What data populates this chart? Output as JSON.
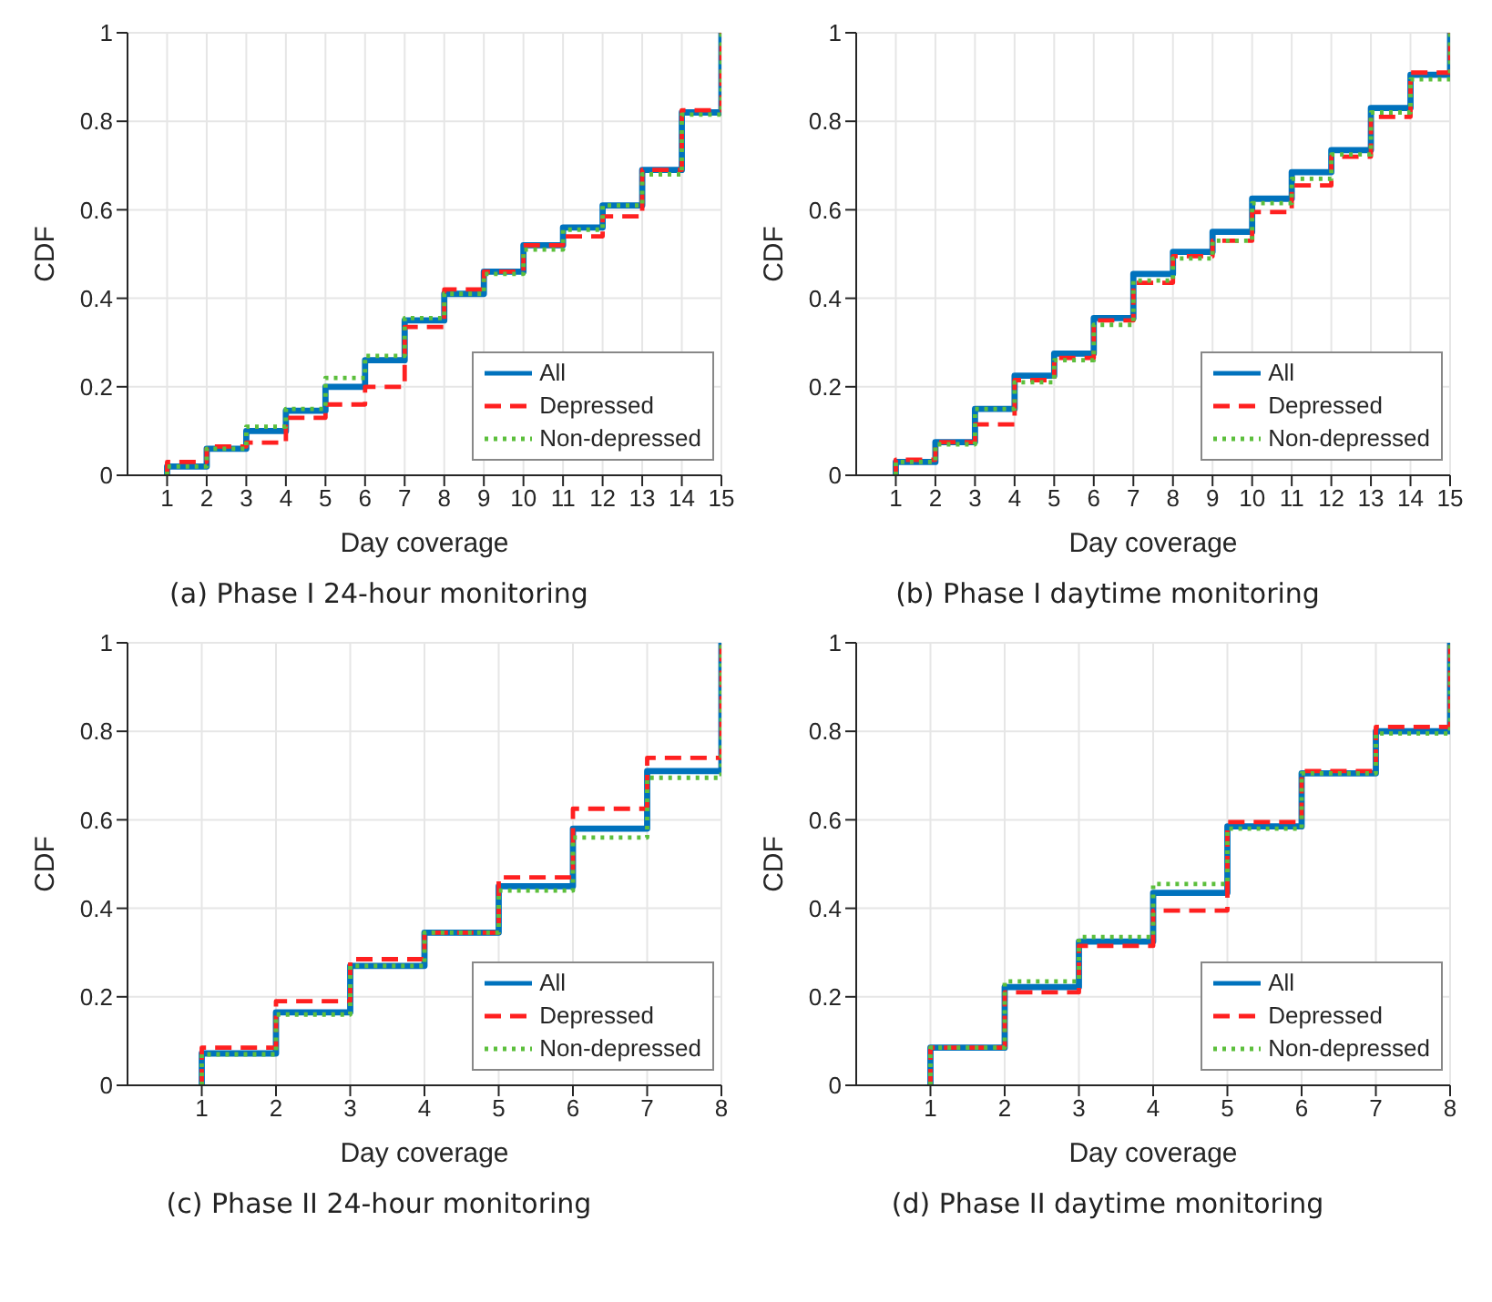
{
  "chart_data": [
    {
      "type": "step",
      "title": "(a) Phase I 24-hour monitoring",
      "xlabel": "Day coverage",
      "ylabel": "CDF",
      "x": [
        1,
        1,
        2,
        3,
        4,
        5,
        6,
        7,
        8,
        9,
        10,
        11,
        12,
        13,
        14,
        15
      ],
      "xlim": [
        0,
        15
      ],
      "xticks": [
        1,
        2,
        3,
        4,
        5,
        6,
        7,
        8,
        9,
        10,
        11,
        12,
        13,
        14,
        15
      ],
      "ylim": [
        0,
        1
      ],
      "yticks": [
        0,
        0.2,
        0.4,
        0.6,
        0.8,
        1
      ],
      "grid": true,
      "legend": "bottom right",
      "series": [
        {
          "name": "All",
          "color": "#0072bd",
          "line_style": "solid",
          "values": [
            0,
            0.02,
            0.06,
            0.1,
            0.146,
            0.2,
            0.26,
            0.35,
            0.41,
            0.46,
            0.52,
            0.56,
            0.61,
            0.69,
            0.82,
            1
          ]
        },
        {
          "name": "Depressed",
          "color": "#ff2020",
          "line_style": "dashed",
          "values": [
            0,
            0.03,
            0.065,
            0.074,
            0.13,
            0.16,
            0.2,
            0.335,
            0.42,
            0.46,
            0.52,
            0.54,
            0.585,
            0.69,
            0.825,
            1
          ]
        },
        {
          "name": "Non-depressed",
          "color": "#5cbf3c",
          "line_style": "dotted",
          "values": [
            0,
            0.02,
            0.06,
            0.11,
            0.15,
            0.22,
            0.27,
            0.355,
            0.41,
            0.455,
            0.51,
            0.555,
            0.61,
            0.68,
            0.815,
            1
          ]
        }
      ]
    },
    {
      "type": "step",
      "title": "(b) Phase I daytime monitoring",
      "xlabel": "Day coverage",
      "ylabel": "CDF",
      "x": [
        1,
        1,
        2,
        3,
        4,
        5,
        6,
        7,
        8,
        9,
        10,
        11,
        12,
        13,
        14,
        15
      ],
      "xlim": [
        0,
        15
      ],
      "xticks": [
        1,
        2,
        3,
        4,
        5,
        6,
        7,
        8,
        9,
        10,
        11,
        12,
        13,
        14,
        15
      ],
      "ylim": [
        0,
        1
      ],
      "yticks": [
        0,
        0.2,
        0.4,
        0.6,
        0.8,
        1
      ],
      "grid": true,
      "legend": "bottom right",
      "series": [
        {
          "name": "All",
          "color": "#0072bd",
          "line_style": "solid",
          "values": [
            0,
            0.03,
            0.075,
            0.15,
            0.225,
            0.275,
            0.355,
            0.455,
            0.505,
            0.55,
            0.625,
            0.685,
            0.735,
            0.83,
            0.905,
            1
          ]
        },
        {
          "name": "Depressed",
          "color": "#ff2020",
          "line_style": "dashed",
          "values": [
            0,
            0.035,
            0.075,
            0.115,
            0.215,
            0.265,
            0.35,
            0.435,
            0.495,
            0.53,
            0.595,
            0.655,
            0.72,
            0.81,
            0.91,
            1
          ]
        },
        {
          "name": "Non-depressed",
          "color": "#5cbf3c",
          "line_style": "dotted",
          "values": [
            0,
            0.03,
            0.07,
            0.15,
            0.21,
            0.26,
            0.34,
            0.44,
            0.49,
            0.53,
            0.615,
            0.67,
            0.725,
            0.82,
            0.895,
            1
          ]
        }
      ]
    },
    {
      "type": "step",
      "title": "(c) Phase II 24-hour monitoring",
      "xlabel": "Day coverage",
      "ylabel": "CDF",
      "x": [
        1,
        1,
        2,
        3,
        4,
        5,
        6,
        7,
        8
      ],
      "xlim": [
        0,
        8
      ],
      "xticks": [
        1,
        2,
        3,
        4,
        5,
        6,
        7,
        8
      ],
      "ylim": [
        0,
        1
      ],
      "yticks": [
        0,
        0.2,
        0.4,
        0.6,
        0.8,
        1
      ],
      "grid": true,
      "legend": "bottom right",
      "series": [
        {
          "name": "All",
          "color": "#0072bd",
          "line_style": "solid",
          "values": [
            0,
            0.072,
            0.165,
            0.27,
            0.345,
            0.45,
            0.58,
            0.71,
            1
          ]
        },
        {
          "name": "Depressed",
          "color": "#ff2020",
          "line_style": "dashed",
          "values": [
            0,
            0.085,
            0.19,
            0.285,
            0.345,
            0.47,
            0.625,
            0.74,
            1
          ]
        },
        {
          "name": "Non-depressed",
          "color": "#5cbf3c",
          "line_style": "dotted",
          "values": [
            0,
            0.07,
            0.16,
            0.27,
            0.345,
            0.44,
            0.56,
            0.695,
            1
          ]
        }
      ]
    },
    {
      "type": "step",
      "title": "(d) Phase II daytime monitoring",
      "xlabel": "Day coverage",
      "ylabel": "CDF",
      "x": [
        1,
        1,
        2,
        3,
        4,
        5,
        6,
        7,
        8
      ],
      "xlim": [
        0,
        8
      ],
      "xticks": [
        1,
        2,
        3,
        4,
        5,
        6,
        7,
        8
      ],
      "ylim": [
        0,
        1
      ],
      "yticks": [
        0,
        0.2,
        0.4,
        0.6,
        0.8,
        1
      ],
      "grid": true,
      "legend": "bottom right",
      "series": [
        {
          "name": "All",
          "color": "#0072bd",
          "line_style": "solid",
          "values": [
            0,
            0.085,
            0.222,
            0.325,
            0.435,
            0.585,
            0.705,
            0.8,
            1
          ]
        },
        {
          "name": "Depressed",
          "color": "#ff2020",
          "line_style": "dashed",
          "values": [
            0,
            0.085,
            0.21,
            0.315,
            0.395,
            0.595,
            0.71,
            0.81,
            1
          ]
        },
        {
          "name": "Non-depressed",
          "color": "#5cbf3c",
          "line_style": "dotted",
          "values": [
            0,
            0.085,
            0.235,
            0.335,
            0.455,
            0.58,
            0.705,
            0.795,
            1
          ]
        }
      ]
    }
  ]
}
